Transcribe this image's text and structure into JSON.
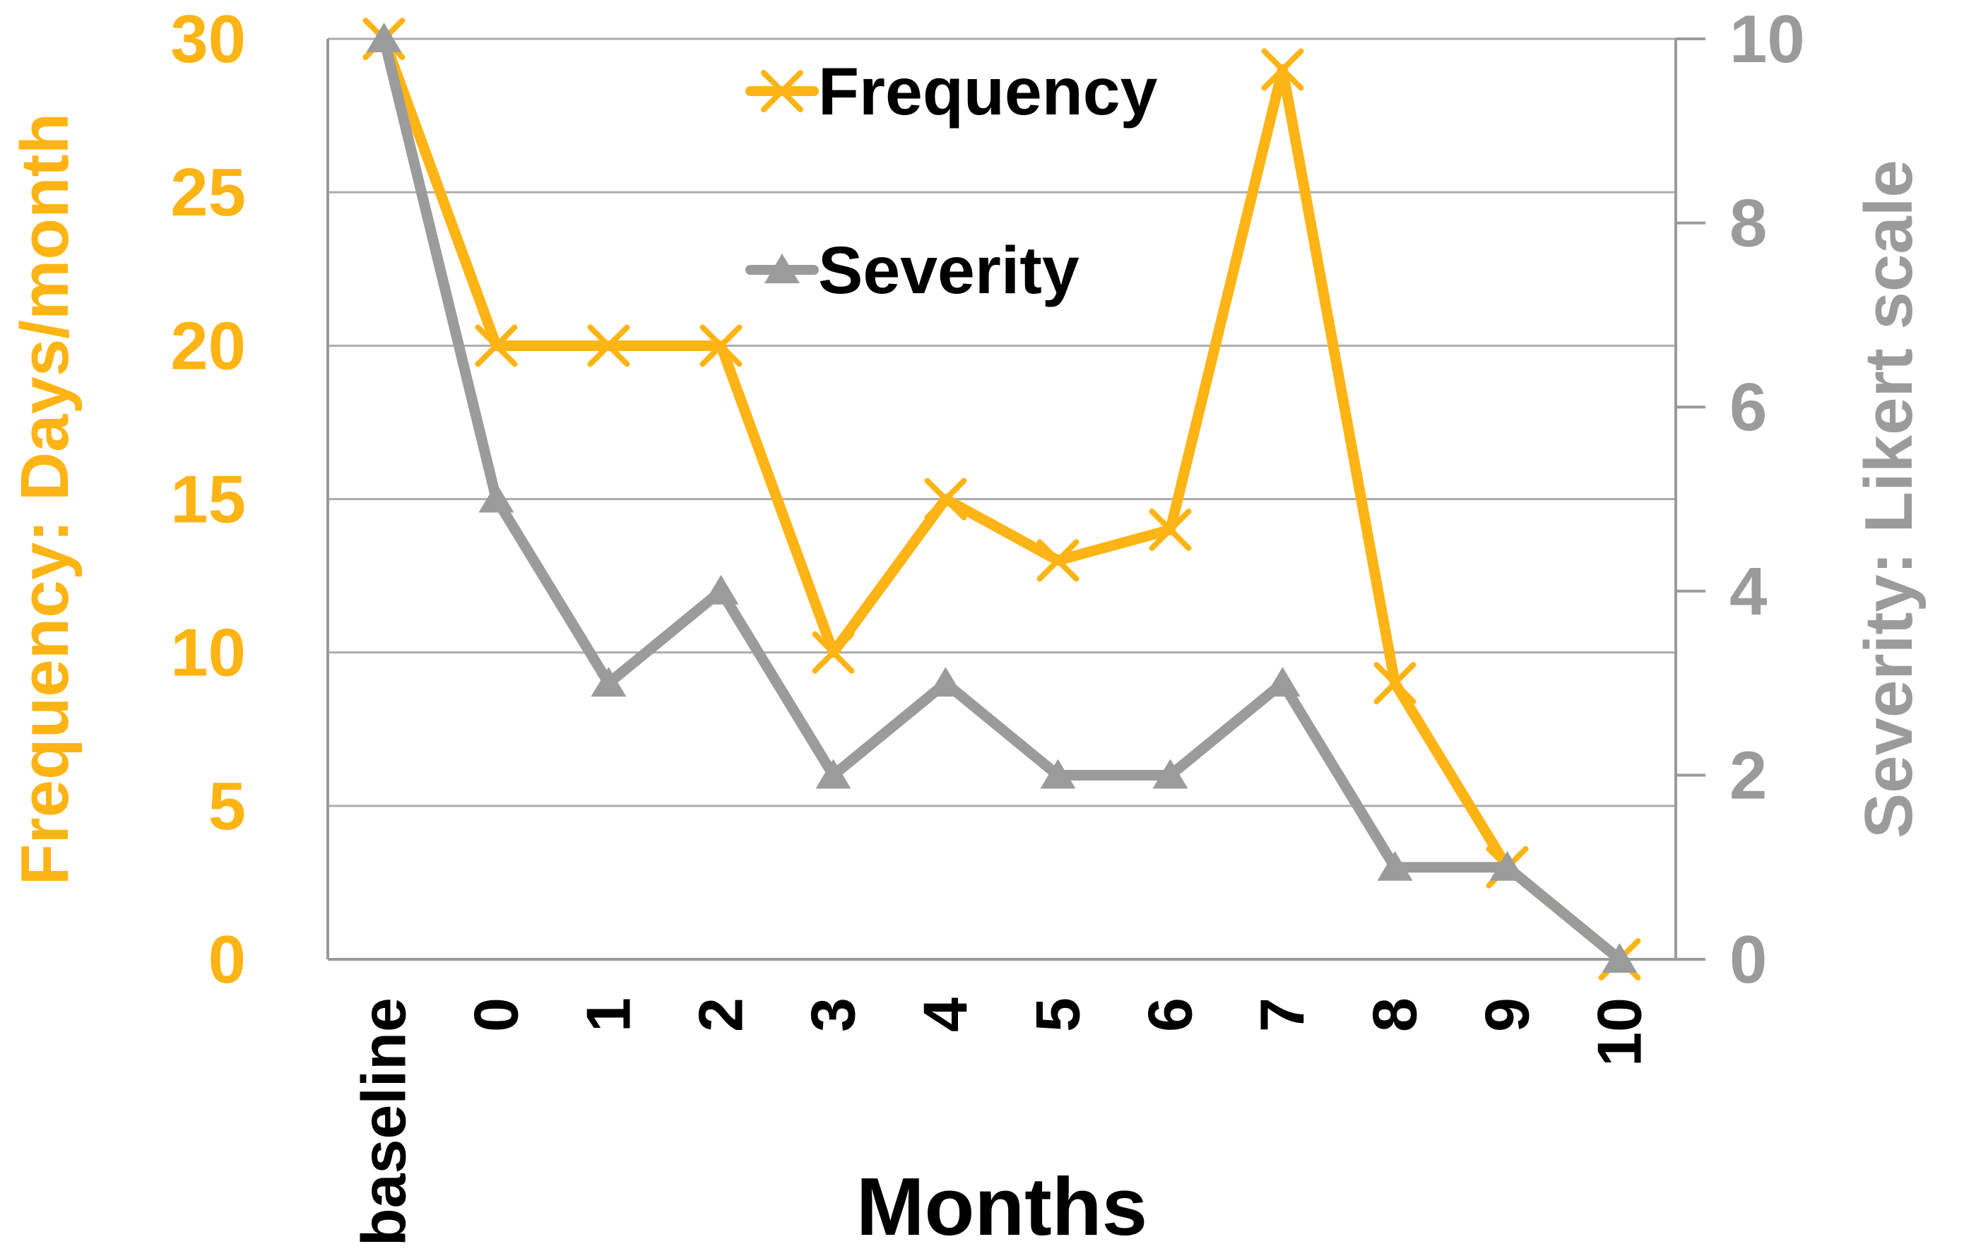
{
  "chart_data": {
    "type": "line",
    "categories": [
      "baseline",
      "0",
      "1",
      "2",
      "3",
      "4",
      "5",
      "6",
      "7",
      "8",
      "9",
      "10"
    ],
    "series": [
      {
        "name": "Frequency",
        "axis": "left",
        "color": "#FDB414",
        "marker": "x",
        "values": [
          30,
          20,
          20,
          20,
          10,
          15,
          13,
          14,
          29,
          9,
          3,
          0
        ]
      },
      {
        "name": "Severity",
        "axis": "right",
        "color": "#9B9B9B",
        "marker": "triangle",
        "values": [
          10,
          5,
          3,
          4,
          2,
          3,
          2,
          2,
          3,
          1,
          1,
          0
        ]
      }
    ],
    "left_axis": {
      "title": "Frequency: Days/month",
      "min": 0,
      "max": 30,
      "step": 5,
      "tick_labels": [
        "0",
        "5",
        "10",
        "15",
        "20",
        "25",
        "30"
      ],
      "color": "#FDB414"
    },
    "right_axis": {
      "title": "Severity: Likert scale",
      "min": 0,
      "max": 10,
      "step": 2,
      "tick_labels": [
        "0",
        "2",
        "4",
        "6",
        "8",
        "10"
      ],
      "color": "#9B9B9B"
    },
    "x_axis": {
      "title": "Months",
      "label_color": "#000000",
      "title_color": "#000000"
    },
    "legend": {
      "position": "top-center",
      "entries": [
        "Frequency",
        "Severity"
      ]
    },
    "grid": true,
    "gridline_color": "#ACACAC",
    "axis_line_color": "#9A9A9A",
    "background": "#FFFFFF"
  }
}
